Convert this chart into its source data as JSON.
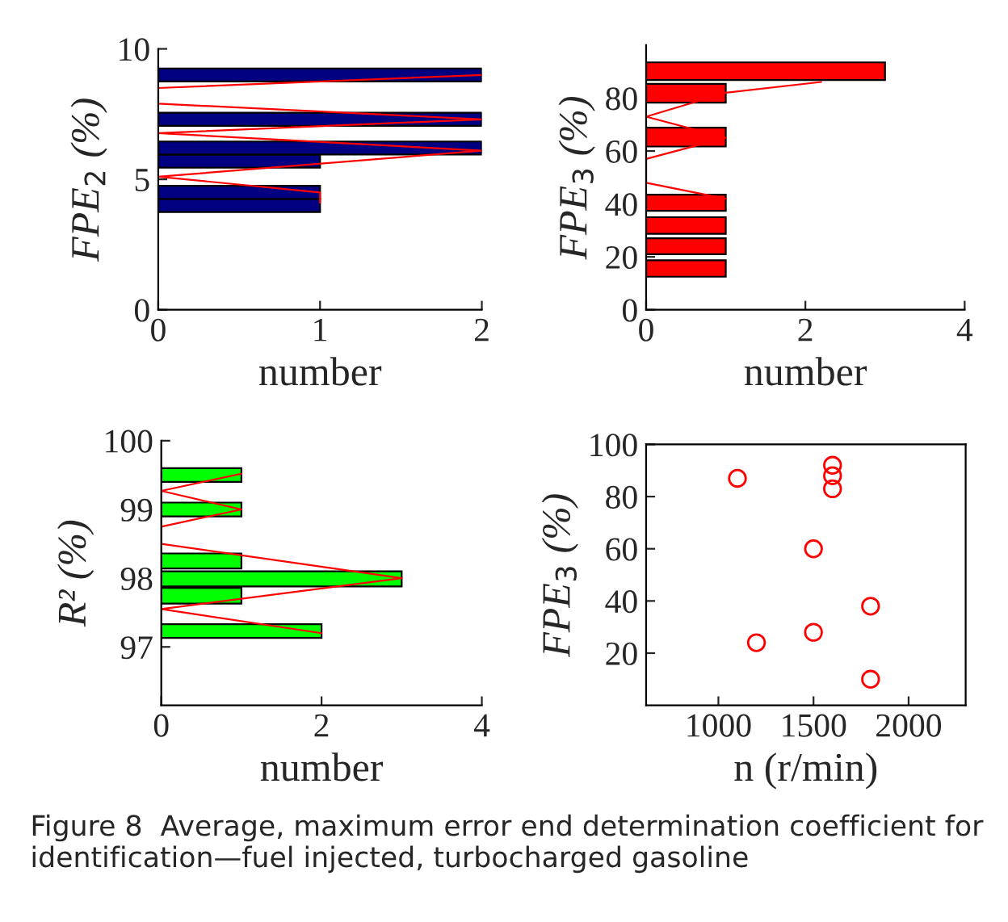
{
  "chart_data": [
    {
      "type": "histogram",
      "orientation": "horizontal",
      "xlabel": "number",
      "ylabel": "FPE$_{2}$ (%)",
      "xlim": [
        0,
        2
      ],
      "xticks": [
        0,
        1,
        2
      ],
      "ylim": [
        0,
        10
      ],
      "yticks": [
        0,
        5,
        10
      ],
      "bins": [
        3.75,
        4.25,
        4.75,
        5.45,
        5.95,
        6.45,
        7.05,
        7.55,
        8.75,
        9.25
      ],
      "values": [
        1,
        1,
        0,
        1,
        2,
        0,
        2,
        0,
        2
      ],
      "color": "#000080",
      "series": [
        {
          "type": "line",
          "color": "#ff0000",
          "x": [
            9.0,
            8.5,
            7.9,
            7.3,
            6.77,
            6.1,
            5.1,
            4.5,
            4.1
          ],
          "values": [
            2,
            0,
            0,
            2,
            0,
            2,
            0,
            1,
            1
          ]
        }
      ]
    },
    {
      "type": "histogram",
      "orientation": "horizontal",
      "xlabel": "number",
      "ylabel": "FPE$_{3}$ (%)",
      "xlim": [
        0,
        4
      ],
      "xticks": [
        0,
        2,
        4
      ],
      "ylim": [
        0,
        100
      ],
      "yticks": [
        0,
        20,
        40,
        60,
        80
      ],
      "bins": [
        12.5,
        18.7,
        21,
        27,
        28.7,
        35,
        37.4,
        43.5,
        61.7,
        68.8,
        78.3,
        85.4,
        86.8,
        93.5
      ],
      "values": [
        1,
        0,
        1,
        0,
        1,
        0,
        1,
        0,
        1,
        0,
        1,
        0,
        3
      ],
      "color": "#ff0000",
      "series": [
        {
          "type": "line",
          "color": "#ff0000",
          "x": [
            86.1,
            82,
            73,
            65,
            57,
            48,
            42
          ],
          "values": [
            2.2,
            1,
            0,
            1,
            0,
            0,
            1
          ]
        }
      ]
    },
    {
      "type": "histogram",
      "orientation": "horizontal",
      "xlabel": "number",
      "ylabel": "R² (%)",
      "xlim": [
        0,
        4
      ],
      "xticks": [
        0,
        2,
        4
      ],
      "ylim": [
        96.15,
        100
      ],
      "yticks": [
        97,
        98,
        99,
        100
      ],
      "bins": [
        97.13,
        97.33,
        97.63,
        97.86,
        97.88,
        98.1,
        98.14,
        98.36,
        98.9,
        99.1,
        99.4,
        99.6
      ],
      "values": [
        2,
        0,
        1,
        0,
        3,
        0,
        1,
        0,
        1,
        0,
        1
      ],
      "color": "#00ff00",
      "series": [
        {
          "type": "line",
          "color": "#ff0000",
          "x": [
            99.52,
            99.27,
            99.0,
            98.75,
            98.5,
            98.0,
            97.55,
            97.2
          ],
          "values": [
            1,
            0,
            1,
            0,
            0,
            3,
            0,
            2
          ]
        }
      ]
    },
    {
      "type": "scatter",
      "xlabel": "n (r/min)",
      "ylabel": "FPE$_{3}$ (%)",
      "xlim": [
        620,
        2300
      ],
      "xticks": [
        1000,
        1500,
        2000
      ],
      "ylim": [
        0,
        100
      ],
      "yticks": [
        20,
        40,
        60,
        80,
        100
      ],
      "marker": "circle",
      "x": [
        1100,
        1600,
        1600,
        1600,
        1500,
        1800,
        1500,
        1200,
        1800
      ],
      "values": [
        87,
        92,
        88,
        83,
        60,
        38,
        28,
        24,
        10
      ],
      "color": "#ff0000",
      "annotations": [
        "Figure 8  Average, maximum error end determination coefficient for identification—fuel injected, turbocharged gasoline"
      ]
    }
  ]
}
